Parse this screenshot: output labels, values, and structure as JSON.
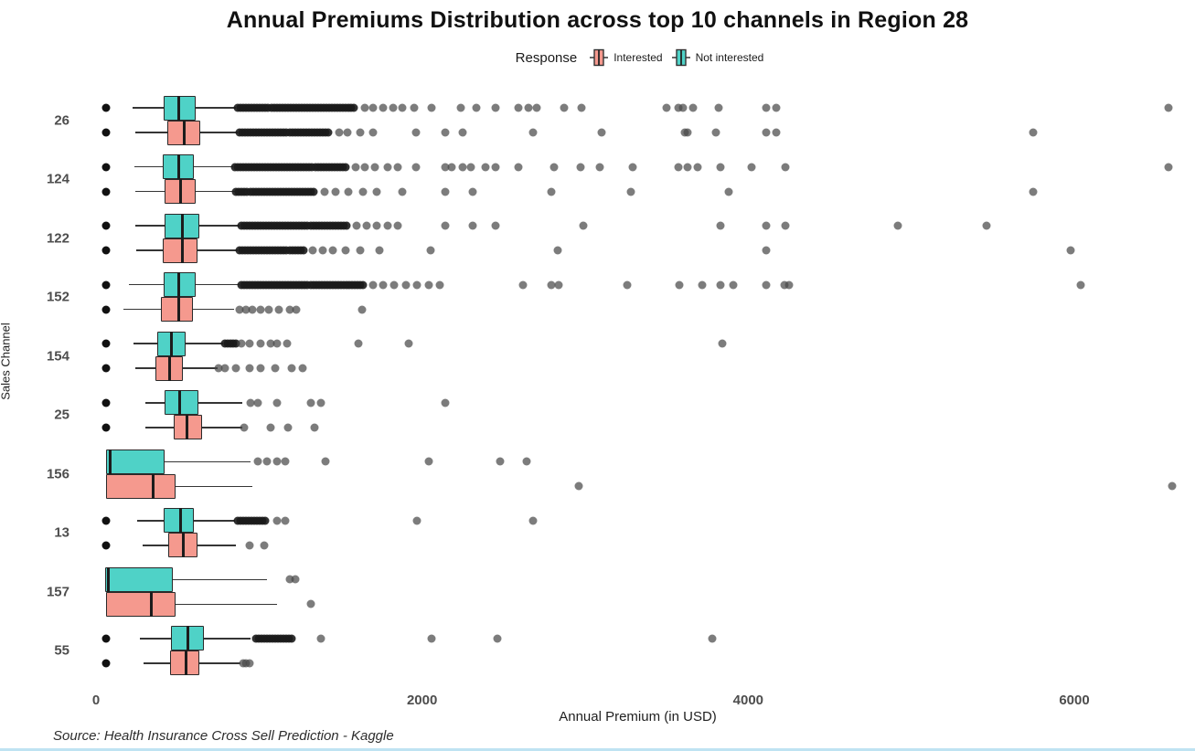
{
  "chart_data": {
    "type": "boxplot",
    "orientation": "horizontal",
    "title": "Annual Premiums Distribution across top 10 channels in Region 28",
    "xlabel": "Annual Premium (in USD)",
    "ylabel": "Sales Channel",
    "x_ticks": [
      0,
      2000,
      4000,
      6000
    ],
    "xlim": [
      -150,
      6740
    ],
    "grid": false,
    "legend": {
      "title": "Response",
      "position": "top",
      "entries": [
        {
          "label": "Interested",
          "color": "#F5998E"
        },
        {
          "label": "Not interested",
          "color": "#4FD2C7"
        }
      ]
    },
    "source_note": "Source: Health Insurance Cross Sell Prediction - Kaggle",
    "channels": [
      {
        "channel": "26",
        "series": [
          {
            "name": "Not interested",
            "whisker_low": 225,
            "q1": 415,
            "median": 510,
            "q3": 610,
            "whisker_high": 860,
            "dense_outliers": [
              870,
              1600
            ],
            "outliers": [
              62,
              1650,
              1700,
              1760,
              1820,
              1880,
              1950,
              2060,
              2240,
              2330,
              2450,
              2590,
              2650,
              2700,
              2870,
              2980,
              3500,
              3570,
              3600,
              3660,
              3820,
              4110,
              4170,
              6580
            ]
          },
          {
            "name": "Interested",
            "whisker_low": 240,
            "q1": 435,
            "median": 540,
            "q3": 640,
            "whisker_high": 870,
            "dense_outliers": [
              880,
              1430
            ],
            "outliers": [
              62,
              1490,
              1540,
              1620,
              1700,
              1960,
              2140,
              2250,
              2680,
              3100,
              3610,
              3630,
              3800,
              4110,
              4170,
              5750
            ]
          }
        ]
      },
      {
        "channel": "124",
        "series": [
          {
            "name": "Not interested",
            "whisker_low": 235,
            "q1": 410,
            "median": 510,
            "q3": 600,
            "whisker_high": 840,
            "dense_outliers": [
              850,
              1540
            ],
            "outliers": [
              62,
              1590,
              1650,
              1710,
              1790,
              1850,
              1960,
              2140,
              2180,
              2250,
              2300,
              2390,
              2450,
              2590,
              2810,
              2970,
              3090,
              3290,
              3570,
              3630,
              3690,
              3830,
              4020,
              4230,
              6580
            ]
          },
          {
            "name": "Interested",
            "whisker_low": 240,
            "q1": 420,
            "median": 520,
            "q3": 610,
            "whisker_high": 850,
            "dense_outliers": [
              860,
              1350
            ],
            "outliers": [
              62,
              1400,
              1470,
              1550,
              1640,
              1720,
              1880,
              2140,
              2310,
              2790,
              3280,
              3880,
              5750
            ]
          }
        ]
      },
      {
        "channel": "122",
        "series": [
          {
            "name": "Not interested",
            "whisker_low": 240,
            "q1": 420,
            "median": 530,
            "q3": 635,
            "whisker_high": 880,
            "dense_outliers": [
              890,
              1550
            ],
            "outliers": [
              62,
              1600,
              1660,
              1720,
              1790,
              1850,
              2140,
              2310,
              2450,
              2990,
              3830,
              4110,
              4230,
              4920,
              5460
            ]
          },
          {
            "name": "Interested",
            "whisker_low": 245,
            "q1": 410,
            "median": 530,
            "q3": 620,
            "whisker_high": 870,
            "dense_outliers": [
              880,
              1280
            ],
            "outliers": [
              62,
              1330,
              1390,
              1450,
              1530,
              1620,
              1740,
              2050,
              2830,
              4110,
              5980
            ]
          }
        ]
      },
      {
        "channel": "152",
        "series": [
          {
            "name": "Not interested",
            "whisker_low": 200,
            "q1": 415,
            "median": 510,
            "q3": 610,
            "whisker_high": 880,
            "dense_outliers": [
              890,
              1650
            ],
            "outliers": [
              62,
              1700,
              1760,
              1830,
              1900,
              1970,
              2040,
              2110,
              2620,
              2790,
              2840,
              3260,
              3580,
              3720,
              3830,
              3910,
              4110,
              4220,
              4250,
              6040
            ]
          },
          {
            "name": "Interested",
            "whisker_low": 170,
            "q1": 400,
            "median": 510,
            "q3": 595,
            "whisker_high": 845,
            "dense_outliers": null,
            "outliers": [
              62,
              880,
              920,
              960,
              1010,
              1060,
              1120,
              1190,
              1230,
              1630
            ]
          }
        ]
      },
      {
        "channel": "154",
        "series": [
          {
            "name": "Not interested",
            "whisker_low": 230,
            "q1": 375,
            "median": 465,
            "q3": 550,
            "whisker_high": 780,
            "dense_outliers": [
              790,
              870
            ],
            "outliers": [
              62,
              890,
              940,
              1010,
              1070,
              1110,
              1170,
              1610,
              1920,
              3840
            ]
          },
          {
            "name": "Interested",
            "whisker_low": 240,
            "q1": 365,
            "median": 450,
            "q3": 530,
            "whisker_high": 745,
            "dense_outliers": null,
            "outliers": [
              62,
              750,
              790,
              860,
              940,
              1010,
              1100,
              1200,
              1270
            ]
          }
        ]
      },
      {
        "channel": "25",
        "series": [
          {
            "name": "Not interested",
            "whisker_low": 300,
            "q1": 420,
            "median": 515,
            "q3": 630,
            "whisker_high": 900,
            "dense_outliers": null,
            "outliers": [
              62,
              950,
              990,
              1110,
              1320,
              1380,
              2140
            ]
          },
          {
            "name": "Interested",
            "whisker_low": 300,
            "q1": 475,
            "median": 560,
            "q3": 650,
            "whisker_high": 895,
            "dense_outliers": null,
            "outliers": [
              62,
              910,
              1070,
              1180,
              1340
            ]
          }
        ]
      },
      {
        "channel": "156",
        "series": [
          {
            "name": "Not interested",
            "whisker_low": 62,
            "q1": 62,
            "median": 85,
            "q3": 420,
            "whisker_high": 950,
            "dense_outliers": null,
            "outliers": [
              990,
              1050,
              1110,
              1160,
              1410,
              2040,
              2480,
              2640
            ]
          },
          {
            "name": "Interested",
            "whisker_low": 62,
            "q1": 62,
            "median": 350,
            "q3": 490,
            "whisker_high": 960,
            "dense_outliers": null,
            "outliers": [
              2960,
              6600
            ]
          }
        ]
      },
      {
        "channel": "13",
        "series": [
          {
            "name": "Not interested",
            "whisker_low": 250,
            "q1": 415,
            "median": 520,
            "q3": 600,
            "whisker_high": 850,
            "dense_outliers": [
              870,
              1050
            ],
            "outliers": [
              62,
              1110,
              1160,
              1970,
              2680
            ]
          },
          {
            "name": "Interested",
            "whisker_low": 285,
            "q1": 445,
            "median": 535,
            "q3": 620,
            "whisker_high": 860,
            "dense_outliers": null,
            "outliers": [
              62,
              940,
              1030
            ]
          }
        ]
      },
      {
        "channel": "157",
        "series": [
          {
            "name": "Not interested",
            "whisker_low": 56,
            "q1": 56,
            "median": 75,
            "q3": 470,
            "whisker_high": 1050,
            "dense_outliers": null,
            "outliers": [
              1190,
              1220
            ]
          },
          {
            "name": "Interested",
            "whisker_low": 62,
            "q1": 62,
            "median": 340,
            "q3": 490,
            "whisker_high": 1110,
            "dense_outliers": null,
            "outliers": [
              1320
            ]
          }
        ]
      },
      {
        "channel": "55",
        "series": [
          {
            "name": "Not interested",
            "whisker_low": 270,
            "q1": 460,
            "median": 565,
            "q3": 660,
            "whisker_high": 950,
            "dense_outliers": [
              980,
              1210
            ],
            "outliers": [
              62,
              1380,
              2060,
              2460,
              3780
            ]
          },
          {
            "name": "Interested",
            "whisker_low": 290,
            "q1": 455,
            "median": 555,
            "q3": 635,
            "whisker_high": 885,
            "dense_outliers": null,
            "outliers": [
              62,
              900,
              920,
              940
            ]
          }
        ]
      }
    ]
  }
}
